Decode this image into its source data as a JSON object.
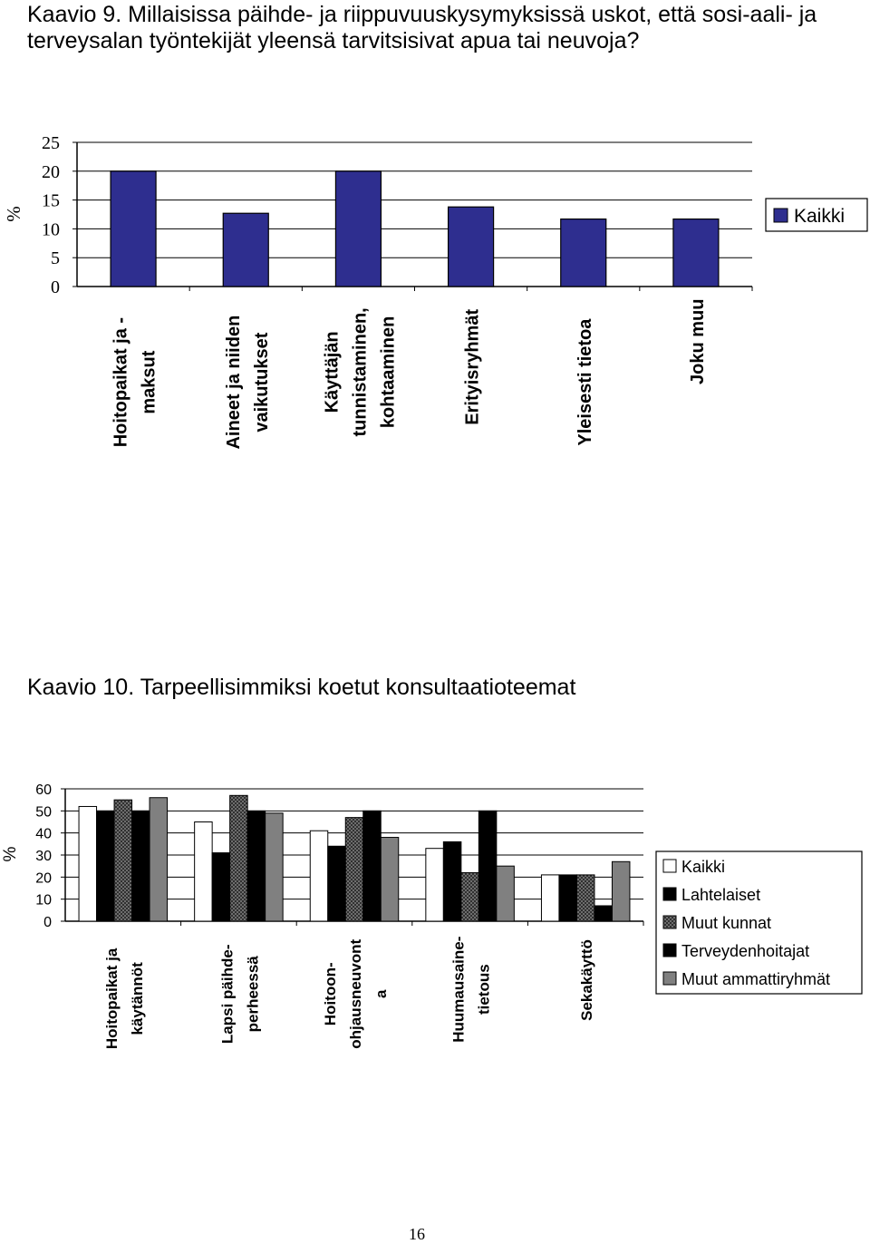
{
  "page": {
    "caption1": "Kaavio 9. Millaisissa päihde- ja riippuvuuskysymyksissä uskot, että sosi-aali- ja terveysalan työntekijät yleensä tarvitsisivat apua tai neuvoja?",
    "caption2": "Kaavio 10. Tarpeellisimmiksi koetut konsultaatioteemat",
    "page_number": "16"
  },
  "chart_data": [
    {
      "type": "bar",
      "ylabel": "%",
      "ylim": [
        0,
        25
      ],
      "yticks": [
        0,
        5,
        10,
        15,
        20,
        25
      ],
      "grid": true,
      "legend_position": "right",
      "categories": [
        [
          "Hoitopaikat ja -",
          "maksut"
        ],
        [
          "Aineet ja niiden",
          "vaikutukset"
        ],
        [
          "Käyttäjän",
          "tunnistaminen,",
          "kohtaaminen"
        ],
        [
          "Erityisryhmät"
        ],
        [
          "Yleisesti tietoa"
        ],
        [
          "Joku muu"
        ]
      ],
      "series": [
        {
          "name": "Kaikki",
          "color": "#2e2e8f",
          "values": [
            20,
            12.7,
            20,
            13.8,
            11.7,
            11.7
          ]
        }
      ]
    },
    {
      "type": "bar",
      "ylabel": "%",
      "ylim": [
        0,
        60
      ],
      "yticks": [
        0,
        10,
        20,
        30,
        40,
        50,
        60
      ],
      "grid": true,
      "legend_position": "right",
      "categories": [
        [
          "Hoitopaikat ja",
          "käytännöt"
        ],
        [
          "Lapsi päihde-",
          "perheessä"
        ],
        [
          "Hoitoon-",
          "ohjausneuvont",
          "a"
        ],
        [
          "Huumausaine-",
          "tietous"
        ],
        [
          "Sekakäyttö"
        ]
      ],
      "series": [
        {
          "name": "Kaikki",
          "pattern": "white",
          "values": [
            52,
            45,
            41,
            33,
            21
          ]
        },
        {
          "name": "Lahtelaiset",
          "pattern": "black",
          "values": [
            50,
            31,
            34,
            36,
            21
          ]
        },
        {
          "name": "Muut kunnat",
          "pattern": "dark-hatch",
          "values": [
            55,
            57,
            47,
            22,
            21
          ]
        },
        {
          "name": "Terveydenhoitajat",
          "pattern": "black",
          "values": [
            50,
            50,
            50,
            50,
            7
          ]
        },
        {
          "name": "Muut ammattiryhmät",
          "pattern": "gray",
          "values": [
            56,
            49,
            38,
            25,
            27
          ]
        }
      ]
    }
  ]
}
